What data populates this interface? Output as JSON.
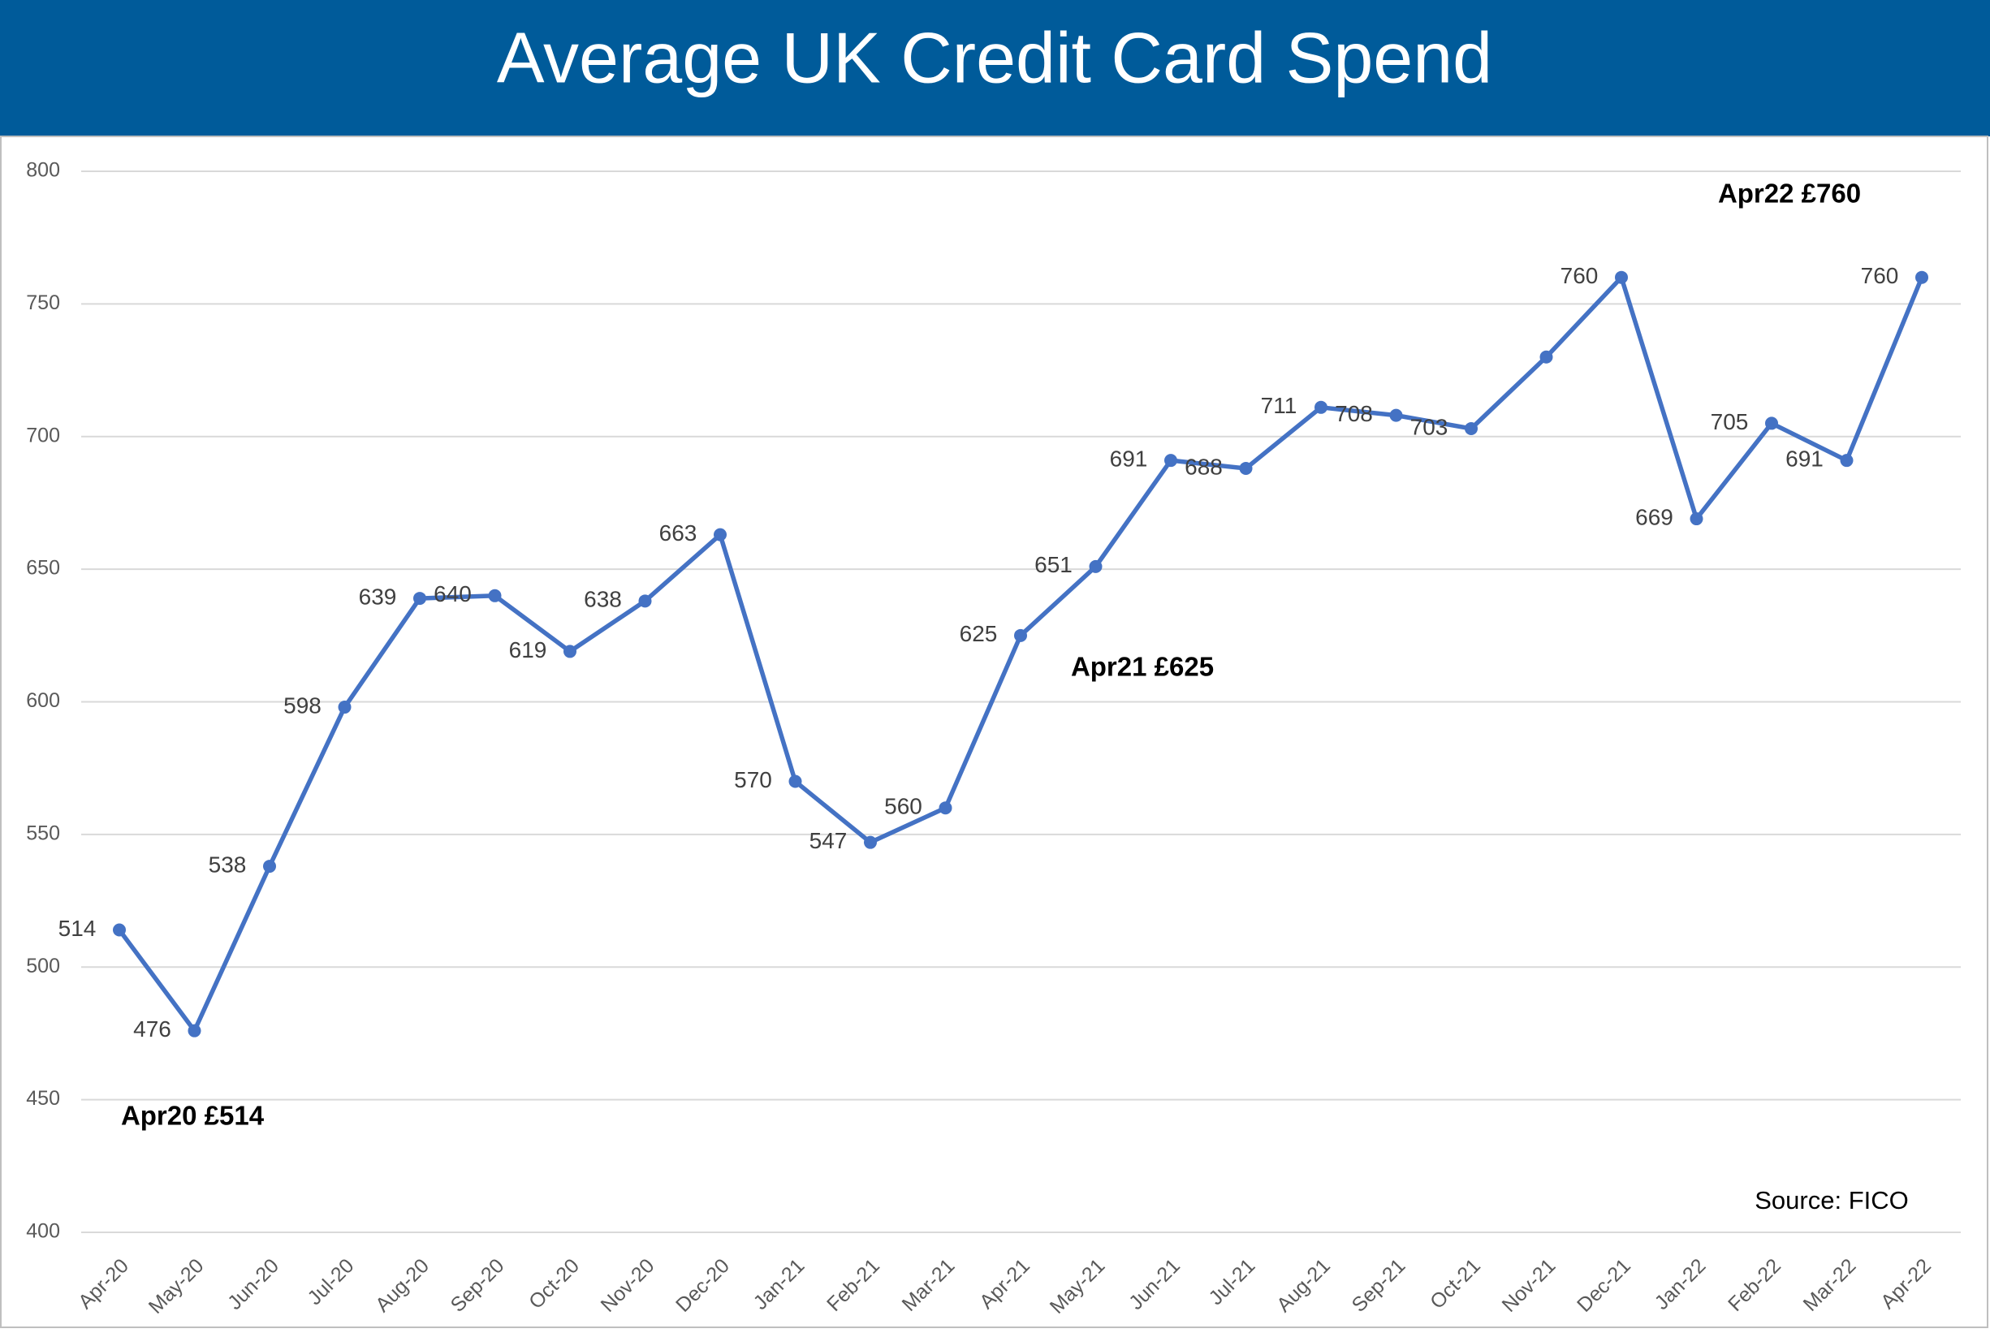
{
  "chart_data": {
    "type": "line",
    "title": "Average UK Credit Card Spend",
    "categories": [
      "Apr-20",
      "May-20",
      "Jun-20",
      "Jul-20",
      "Aug-20",
      "Sep-20",
      "Oct-20",
      "Nov-20",
      "Dec-20",
      "Jan-21",
      "Feb-21",
      "Mar-21",
      "Apr-21",
      "May-21",
      "Jun-21",
      "Jul-21",
      "Aug-21",
      "Sep-21",
      "Oct-21",
      "Nov-21",
      "Dec-21",
      "Jan-22",
      "Feb-22",
      "Mar-22",
      "Apr-22"
    ],
    "series": [
      {
        "name": "Average spend",
        "color": "#4472c4",
        "values": [
          514,
          476,
          538,
          598,
          639,
          640,
          619,
          638,
          663,
          570,
          547,
          560,
          625,
          651,
          691,
          688,
          711,
          708,
          703,
          730,
          760,
          669,
          705,
          691,
          760
        ],
        "value_labels": [
          "514",
          "476",
          "538",
          "598",
          "639",
          "640",
          "619",
          "638",
          "663",
          "570",
          "547",
          "560",
          "625",
          "651",
          "691",
          "688",
          "711",
          "708",
          "703",
          null,
          "760",
          "669",
          "705",
          "691",
          "760"
        ]
      }
    ],
    "ylim": [
      400,
      800
    ],
    "yticks": [
      400,
      450,
      500,
      550,
      600,
      650,
      700,
      750,
      800
    ],
    "grid": true,
    "annotations": [
      "Apr20 £514",
      "Apr21 £625",
      "Apr22 £760",
      "Source: FICO"
    ]
  }
}
